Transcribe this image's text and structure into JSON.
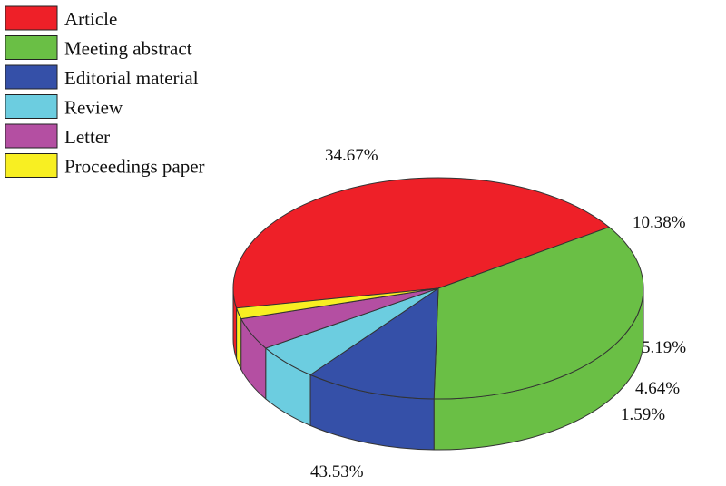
{
  "chart_data": {
    "type": "pie",
    "style": "3d",
    "legend_position": "top-left",
    "categories": [
      "Article",
      "Meeting abstract",
      "Editorial material",
      "Review",
      "Letter",
      "Proceedings paper"
    ],
    "values": [
      43.53,
      34.67,
      10.38,
      5.19,
      4.64,
      1.59
    ],
    "labels": [
      "43.53%",
      "34.67%",
      "10.38%",
      "5.19%",
      "4.64%",
      "1.59%"
    ],
    "colors": [
      "#ee2028",
      "#6abf45",
      "#3550a8",
      "#6ccde0",
      "#b44fa2",
      "#f8ef22"
    ]
  }
}
